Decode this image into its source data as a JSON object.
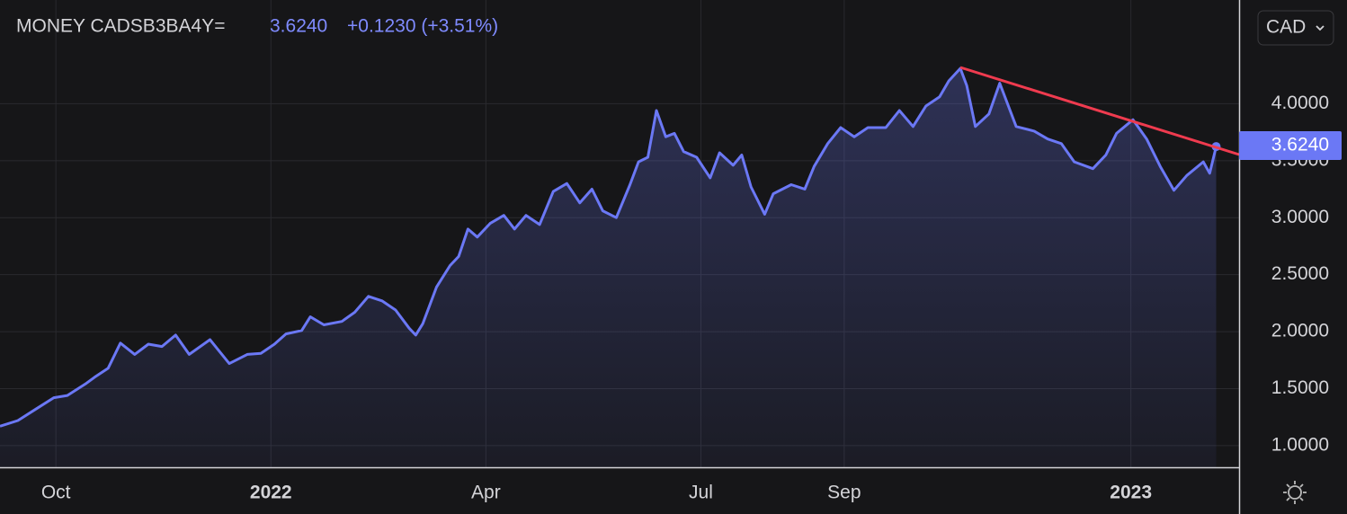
{
  "header": {
    "symbol": "MONEY CADSB3BA4Y=",
    "price": "3.6240",
    "change": "+0.1230 (+3.51%)",
    "currency": "CAD"
  },
  "chart_data": {
    "type": "line",
    "color": "#6b78f5",
    "x": [
      -0.78,
      -0.53,
      -0.28,
      -0.03,
      0.16,
      0.41,
      0.54,
      0.73,
      0.9,
      1.1,
      1.29,
      1.48,
      1.67,
      1.86,
      2.15,
      2.42,
      2.67,
      2.86,
      3.05,
      3.21,
      3.43,
      3.55,
      3.74,
      3.99,
      4.17,
      4.36,
      4.55,
      4.74,
      4.93,
      5.02,
      5.12,
      5.31,
      5.5,
      5.62,
      5.75,
      5.88,
      6.06,
      6.25,
      6.4,
      6.56,
      6.75,
      6.94,
      7.13,
      7.31,
      7.48,
      7.63,
      7.82,
      8.01,
      8.13,
      8.26,
      8.38,
      8.51,
      8.63,
      8.76,
      8.94,
      9.13,
      9.26,
      9.45,
      9.57,
      9.7,
      9.89,
      10.01,
      10.26,
      10.45,
      10.58,
      10.77,
      10.95,
      11.14,
      11.33,
      11.58,
      11.77,
      11.96,
      12.14,
      12.33,
      12.46,
      12.62,
      12.71,
      12.83,
      13.02,
      13.17,
      13.4,
      13.65,
      13.84,
      14.03,
      14.21,
      14.47,
      14.65,
      14.8,
      15.03,
      15.22,
      15.41,
      15.6,
      15.78,
      16.01,
      16.1,
      16.19
    ],
    "values": [
      1.17,
      1.22,
      1.32,
      1.42,
      1.44,
      1.54,
      1.6,
      1.68,
      1.9,
      1.8,
      1.89,
      1.87,
      1.97,
      1.8,
      1.93,
      1.72,
      1.8,
      1.81,
      1.89,
      1.98,
      2.01,
      2.13,
      2.06,
      2.09,
      2.17,
      2.31,
      2.27,
      2.19,
      2.03,
      1.97,
      2.07,
      2.39,
      2.58,
      2.66,
      2.9,
      2.83,
      2.95,
      3.02,
      2.9,
      3.02,
      2.94,
      3.23,
      3.3,
      3.13,
      3.25,
      3.06,
      3.0,
      3.29,
      3.49,
      3.53,
      3.94,
      3.71,
      3.74,
      3.58,
      3.53,
      3.35,
      3.57,
      3.46,
      3.55,
      3.27,
      3.03,
      3.21,
      3.29,
      3.25,
      3.45,
      3.65,
      3.79,
      3.71,
      3.79,
      3.79,
      3.94,
      3.8,
      3.98,
      4.06,
      4.2,
      4.31,
      4.16,
      3.8,
      3.91,
      4.18,
      3.8,
      3.76,
      3.69,
      3.65,
      3.49,
      3.43,
      3.55,
      3.74,
      3.86,
      3.69,
      3.45,
      3.24,
      3.37,
      3.49,
      3.39,
      3.624
    ],
    "xlim": [
      -0.78,
      16.51
    ],
    "ylim": [
      0.81,
      4.91
    ],
    "xticks": [
      {
        "value": 0,
        "label": "Oct"
      },
      {
        "value": 3,
        "label": "2022"
      },
      {
        "value": 6,
        "label": "Apr"
      },
      {
        "value": 9,
        "label": "Jul"
      },
      {
        "value": 11,
        "label": "Sep"
      },
      {
        "value": 15,
        "label": "2023"
      }
    ],
    "yticks": [
      {
        "value": 1,
        "label": "1.0000"
      },
      {
        "value": 1.5,
        "label": "1.5000"
      },
      {
        "value": 2,
        "label": "2.0000"
      },
      {
        "value": 2.5,
        "label": "2.5000"
      },
      {
        "value": 3,
        "label": "3.0000"
      },
      {
        "value": 3.5,
        "label": "3.5000"
      },
      {
        "value": 4,
        "label": "4.0000"
      }
    ],
    "grid": true
  }
}
